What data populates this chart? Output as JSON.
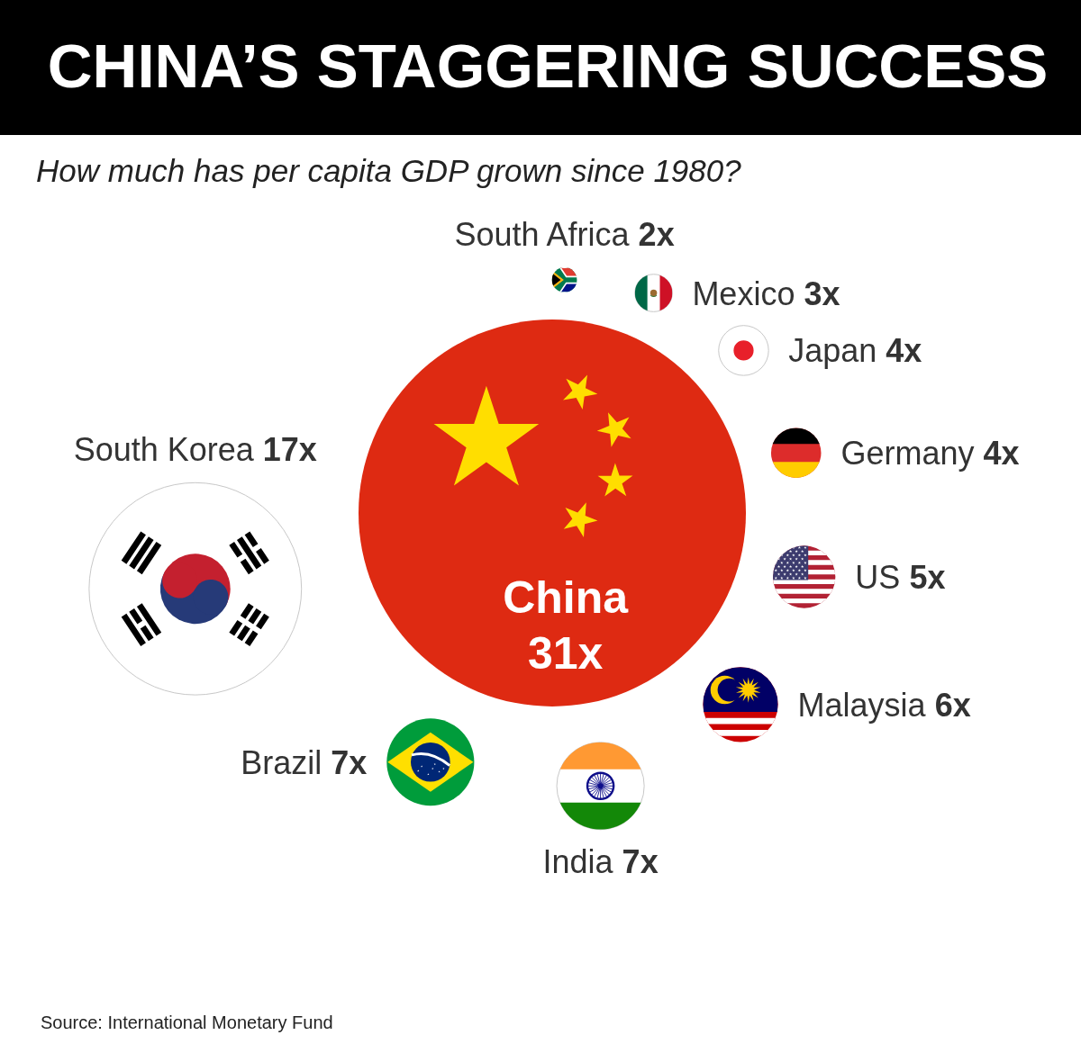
{
  "chart_data": {
    "type": "other",
    "title": "CHINA’S STAGGERING SUCCESS",
    "subtitle": "How much has per capita GDP grown since 1980?",
    "categories": [
      "China",
      "South Africa",
      "Mexico",
      "Japan",
      "Germany",
      "US",
      "Malaysia",
      "India",
      "Brazil",
      "South Korea"
    ],
    "values": [
      31,
      2,
      3,
      4,
      4,
      5,
      6,
      7,
      7,
      17
    ],
    "value_labels": [
      "31x",
      "2x",
      "3x",
      "4x",
      "4x",
      "5x",
      "6x",
      "7x",
      "7x",
      "17x"
    ],
    "colors": [
      "#de2a12",
      "#007a4d",
      "#ffffff",
      "#ffffff",
      "#dd2c2b",
      "#b22234",
      "#cc0001",
      "#ffffff",
      "#009c3b",
      "#ffffff"
    ],
    "annotations": [
      "Source: International Monetary Fund"
    ]
  }
}
